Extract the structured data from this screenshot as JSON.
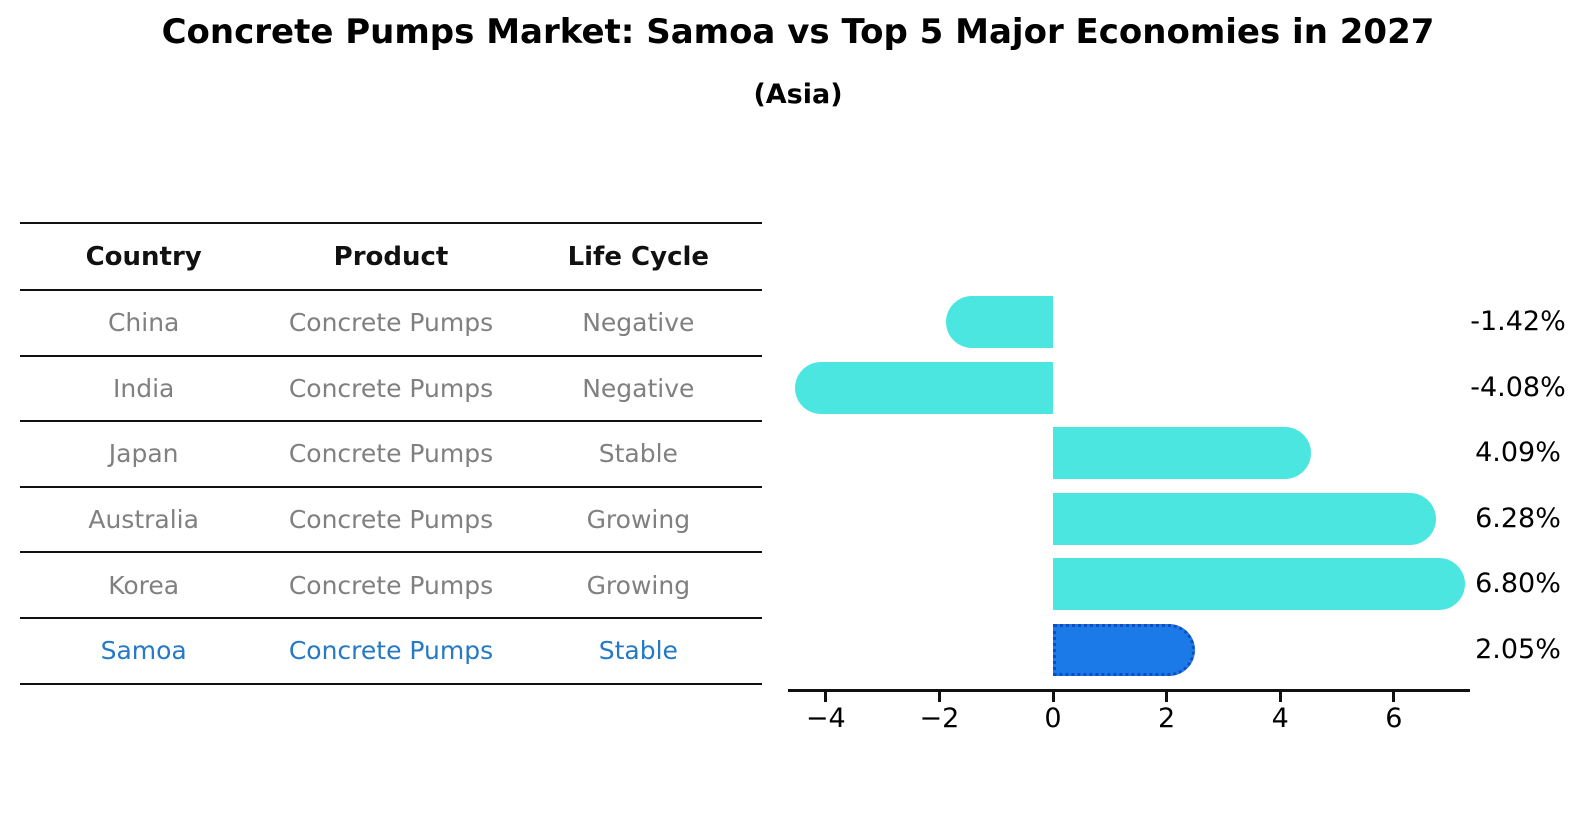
{
  "header": {
    "title": "Concrete Pumps Market: Samoa vs Top 5 Major Economies in 2027",
    "subtitle": "(Asia)"
  },
  "table": {
    "columns": [
      "Country",
      "Product",
      "Life Cycle"
    ],
    "rows": [
      {
        "country": "China",
        "product": "Concrete Pumps",
        "life_cycle": "Negative",
        "highlight": false
      },
      {
        "country": "India",
        "product": "Concrete Pumps",
        "life_cycle": "Negative",
        "highlight": false
      },
      {
        "country": "Japan",
        "product": "Concrete Pumps",
        "life_cycle": "Stable",
        "highlight": false
      },
      {
        "country": "Australia",
        "product": "Concrete Pumps",
        "life_cycle": "Growing",
        "highlight": false
      },
      {
        "country": "Korea",
        "product": "Concrete Pumps",
        "life_cycle": "Growing",
        "highlight": false
      },
      {
        "country": "Samoa",
        "product": "Concrete Pumps",
        "life_cycle": "Stable",
        "highlight": true
      }
    ]
  },
  "chart_data": {
    "type": "bar",
    "orientation": "horizontal",
    "title": "Concrete Pumps Market: Samoa vs Top 5 Major Economies in 2027",
    "subtitle": "(Asia)",
    "categories": [
      "China",
      "India",
      "Japan",
      "Australia",
      "Korea",
      "Samoa"
    ],
    "values": [
      -1.42,
      -4.08,
      4.09,
      6.28,
      6.8,
      2.05
    ],
    "value_labels": [
      "-1.42%",
      "-4.08%",
      "4.09%",
      "6.28%",
      "6.80%",
      "2.05%"
    ],
    "highlight_index": 5,
    "xlim": [
      -4.62,
      7.34
    ],
    "xticks": [
      -4,
      -2,
      0,
      2,
      4,
      6
    ],
    "grid": false,
    "legend": "none"
  },
  "colors": {
    "bar": "#4CE6E1",
    "highlight_bar": "#1B7AE8",
    "highlight_border": "#0D4FC0",
    "highlight_text": "#2579C5",
    "table_text": "#808080",
    "axis": "#111111"
  }
}
